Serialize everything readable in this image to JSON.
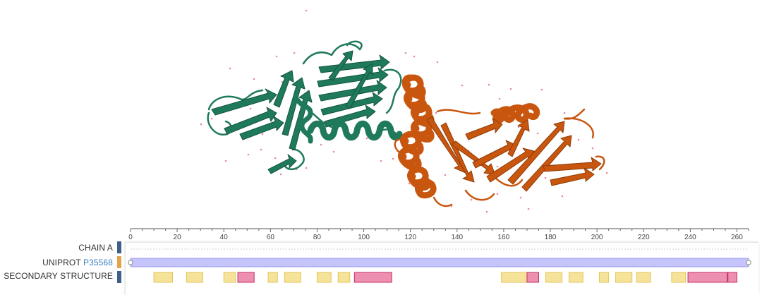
{
  "viewer": {
    "chain1_color": "#1f7a5c",
    "chain2_color": "#c8560f",
    "water_color": "#e58aa2"
  },
  "tracks": {
    "chain_label": "CHAIN A",
    "uniprot_prefix": "UNIPROT",
    "uniprot_accession": "P35568",
    "secondary_label": "SECONDARY STRUCTURE",
    "chain_bar_color": "#3f5f8a",
    "uniprot_bar_color": "#e4a34a",
    "ss_bar_color": "#3f5f8a"
  },
  "ruler": {
    "min": 0,
    "max": 265,
    "ticks": [
      "0",
      "20",
      "40",
      "60",
      "80",
      "100",
      "120",
      "140",
      "160",
      "180",
      "200",
      "220",
      "240",
      "260"
    ]
  },
  "uniprot_range": [
    0,
    265
  ],
  "strands": [
    [
      10,
      18
    ],
    [
      24,
      31
    ],
    [
      40,
      45
    ],
    [
      59,
      63
    ],
    [
      66,
      73
    ],
    [
      80,
      86
    ],
    [
      89,
      94
    ],
    [
      159,
      170
    ],
    [
      178,
      185
    ],
    [
      188,
      194
    ],
    [
      201,
      205
    ],
    [
      208,
      215
    ],
    [
      217,
      223
    ],
    [
      232,
      238
    ]
  ],
  "helices": [
    [
      46,
      53
    ],
    [
      96,
      112
    ],
    [
      170,
      175
    ],
    [
      239,
      260
    ]
  ],
  "helix_divider": 256,
  "colors": {
    "strand_fill": "#f5e39a",
    "strand_stroke": "#e3c55a",
    "helix_fill": "#ec8fb0",
    "helix_stroke": "#c4305f",
    "uniprot_fill": "#c5c4fb",
    "uniprot_stroke": "#9a98f0"
  }
}
